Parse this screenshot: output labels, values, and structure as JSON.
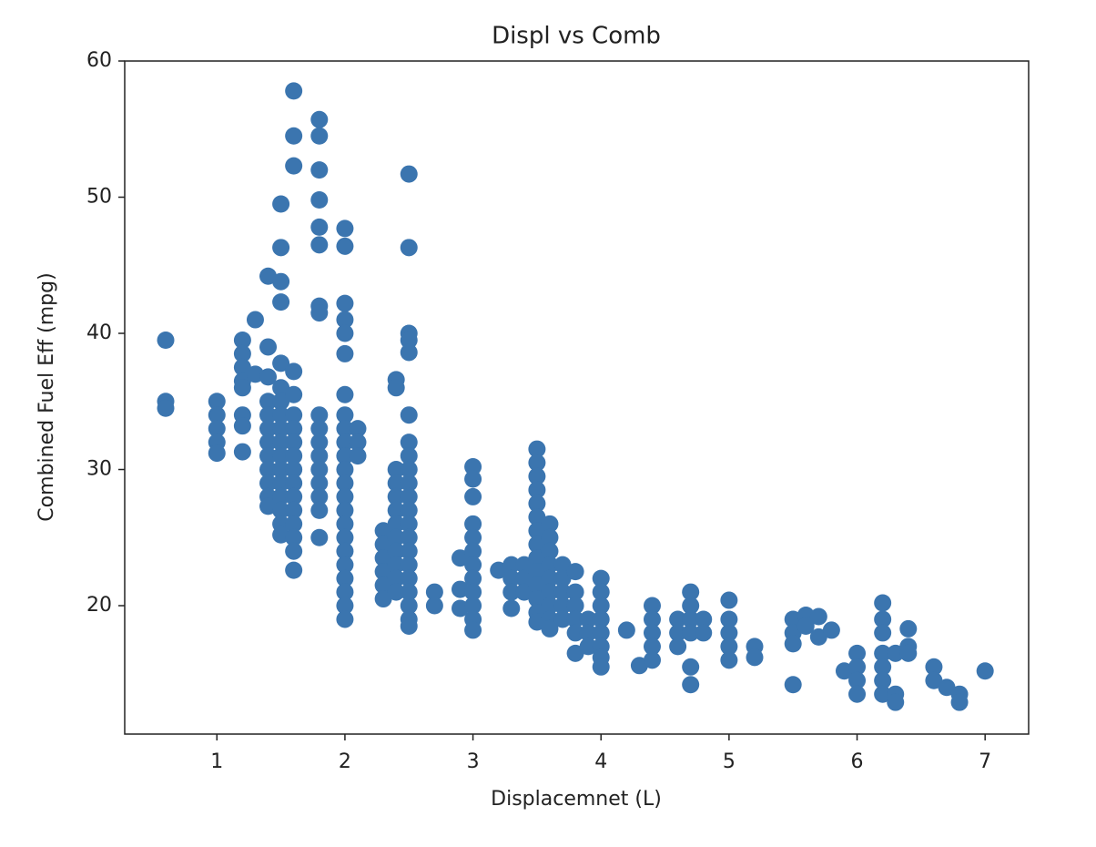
{
  "chart_data": {
    "type": "scatter",
    "title": "Displ vs Comb",
    "x_label": "Displacemnet (L)",
    "y_label": "Combined Fuel Eff (mpg)",
    "color": "#3b75af",
    "xlim": [
      0.28,
      7.34
    ],
    "ylim": [
      10.57,
      60
    ],
    "xticks": [
      1,
      2,
      3,
      4,
      5,
      6,
      7
    ],
    "yticks": [
      20,
      30,
      40,
      50,
      60
    ],
    "x": [
      0.6,
      0.6,
      0.6,
      1.0,
      1.0,
      1.0,
      1.0,
      1.0,
      1.2,
      1.2,
      1.2,
      1.2,
      1.2,
      1.2,
      1.2,
      1.2,
      1.3,
      1.3,
      1.4,
      1.4,
      1.4,
      1.4,
      1.4,
      1.4,
      1.4,
      1.4,
      1.4,
      1.4,
      1.4,
      1.4,
      1.5,
      1.5,
      1.5,
      1.5,
      1.5,
      1.5,
      1.5,
      1.5,
      1.5,
      1.5,
      1.5,
      1.5,
      1.5,
      1.5,
      1.5,
      1.5,
      1.5,
      1.6,
      1.6,
      1.6,
      1.6,
      1.6,
      1.6,
      1.6,
      1.6,
      1.6,
      1.6,
      1.6,
      1.6,
      1.6,
      1.6,
      1.6,
      1.6,
      1.6,
      1.8,
      1.8,
      1.8,
      1.8,
      1.8,
      1.8,
      1.8,
      1.8,
      1.8,
      1.8,
      1.8,
      1.8,
      1.8,
      1.8,
      1.8,
      1.8,
      1.8,
      2.0,
      2.0,
      2.0,
      2.0,
      2.0,
      2.0,
      2.0,
      2.0,
      2.0,
      2.0,
      2.0,
      2.0,
      2.0,
      2.0,
      2.0,
      2.0,
      2.0,
      2.0,
      2.0,
      2.0,
      2.0,
      2.0,
      2.0,
      2.1,
      2.1,
      2.1,
      2.3,
      2.3,
      2.3,
      2.3,
      2.3,
      2.3,
      2.4,
      2.4,
      2.4,
      2.4,
      2.4,
      2.4,
      2.4,
      2.4,
      2.4,
      2.4,
      2.4,
      2.4,
      2.5,
      2.5,
      2.5,
      2.5,
      2.5,
      2.5,
      2.5,
      2.5,
      2.5,
      2.5,
      2.5,
      2.5,
      2.5,
      2.5,
      2.5,
      2.5,
      2.5,
      2.5,
      2.5,
      2.5,
      2.5,
      2.7,
      2.7,
      2.9,
      2.9,
      2.9,
      3.0,
      3.0,
      3.0,
      3.0,
      3.0,
      3.0,
      3.0,
      3.0,
      3.0,
      3.0,
      3.0,
      3.0,
      3.2,
      3.3,
      3.3,
      3.3,
      3.3,
      3.4,
      3.4,
      3.4,
      3.5,
      3.5,
      3.5,
      3.5,
      3.5,
      3.5,
      3.5,
      3.5,
      3.5,
      3.5,
      3.5,
      3.5,
      3.5,
      3.5,
      3.6,
      3.6,
      3.6,
      3.6,
      3.6,
      3.6,
      3.6,
      3.6,
      3.6,
      3.7,
      3.7,
      3.7,
      3.7,
      3.7,
      3.8,
      3.8,
      3.8,
      3.8,
      3.8,
      3.8,
      3.9,
      3.9,
      3.9,
      4.0,
      4.0,
      4.0,
      4.0,
      4.0,
      4.0,
      4.0,
      4.0,
      4.2,
      4.3,
      4.4,
      4.4,
      4.4,
      4.4,
      4.4,
      4.6,
      4.6,
      4.6,
      4.7,
      4.7,
      4.7,
      4.7,
      4.7,
      4.7,
      4.8,
      4.8,
      5.0,
      5.0,
      5.0,
      5.0,
      5.0,
      5.2,
      5.2,
      5.5,
      5.5,
      5.5,
      5.5,
      5.6,
      5.6,
      5.7,
      5.7,
      5.8,
      5.9,
      6.0,
      6.0,
      6.0,
      6.0,
      6.2,
      6.2,
      6.2,
      6.2,
      6.2,
      6.2,
      6.2,
      6.3,
      6.3,
      6.3,
      6.4,
      6.4,
      6.4,
      6.6,
      6.6,
      6.7,
      6.8,
      6.8,
      7.0
    ],
    "values": [
      39.5,
      35,
      34.5,
      35,
      34,
      33,
      32,
      31.2,
      39.5,
      38.5,
      37.5,
      36.5,
      36,
      34,
      33.2,
      31.3,
      41,
      37,
      44.2,
      39,
      36.8,
      35,
      34,
      33,
      32,
      31,
      30,
      29,
      28,
      27.3,
      49.5,
      46.3,
      43.8,
      42.3,
      37.8,
      36,
      35,
      34,
      33,
      32,
      31,
      30,
      29,
      28,
      27,
      26,
      25.2,
      57.8,
      54.5,
      52.3,
      37.2,
      35.5,
      34,
      33,
      32,
      31,
      30,
      29,
      28,
      27,
      26,
      25,
      24,
      22.6,
      55.7,
      54.5,
      52,
      49.8,
      47.8,
      46.5,
      42,
      41.5,
      34,
      33,
      32,
      31,
      30,
      29,
      28,
      27,
      25,
      47.7,
      46.4,
      42.2,
      41,
      40,
      38.5,
      35.5,
      34,
      33,
      32,
      31,
      30,
      29,
      28,
      27,
      26,
      25,
      24,
      23,
      22,
      21,
      20,
      19,
      33,
      32,
      31,
      25.5,
      24.5,
      23.5,
      22.5,
      21.5,
      20.5,
      36.6,
      36,
      30,
      29,
      28,
      27,
      26,
      25,
      24,
      23,
      22,
      21,
      51.7,
      46.3,
      40,
      39.5,
      38.6,
      34,
      32,
      31,
      30,
      29,
      28,
      27,
      26,
      25,
      24,
      23,
      22,
      21,
      20,
      19,
      18.5,
      21,
      20,
      23.5,
      21.2,
      19.8,
      30.2,
      29.3,
      28,
      26,
      25,
      24,
      23,
      22,
      21,
      20,
      19,
      18.2,
      22.6,
      23,
      22,
      21,
      19.8,
      23,
      22,
      21,
      31.5,
      30.5,
      29.5,
      28.5,
      27.5,
      26.5,
      25.5,
      24.5,
      23.5,
      22.5,
      21.5,
      20.5,
      19.5,
      18.8,
      26,
      25,
      24,
      23,
      22,
      21,
      20,
      19,
      18.3,
      23,
      22,
      21,
      20,
      19,
      22.5,
      21,
      20,
      19,
      18,
      16.5,
      19,
      18,
      17,
      22,
      21,
      20,
      19,
      18,
      17,
      16.2,
      15.5,
      18.2,
      15.6,
      20,
      19,
      18,
      17,
      16,
      19,
      18,
      17,
      21,
      20,
      19,
      18,
      15.5,
      14.2,
      19,
      18,
      20.4,
      19,
      18,
      17,
      16,
      17,
      16.2,
      19,
      18,
      17.2,
      14.2,
      19.3,
      18.5,
      19.2,
      17.7,
      18.2,
      15.2,
      16.5,
      15.5,
      14.5,
      13.5,
      20.2,
      19,
      18,
      16.5,
      15.5,
      14.5,
      13.5,
      16.5,
      13.5,
      12.9,
      18.3,
      17,
      16.5,
      15.5,
      14.5,
      14,
      13.5,
      12.9,
      15.2
    ]
  }
}
